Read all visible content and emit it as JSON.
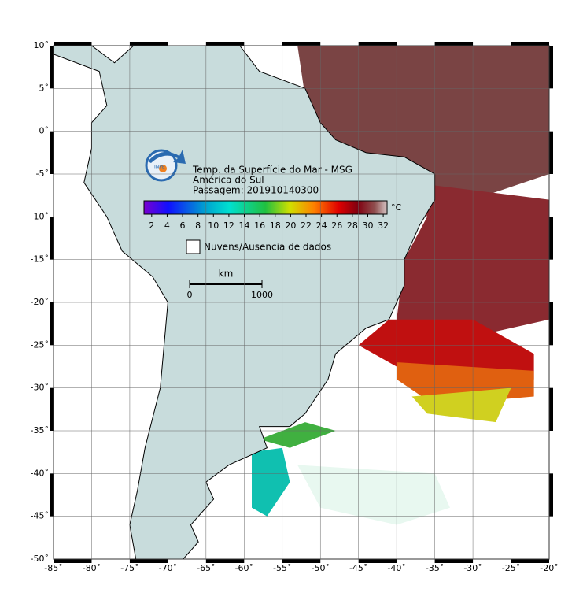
{
  "map": {
    "title": [
      "Temp. da Superfície do Mar - MSG",
      "América do Sul",
      "Passagem: 201910140300"
    ],
    "colorbar": {
      "unit": "°C",
      "lim": [
        1,
        32.5
      ],
      "ticks": [
        2,
        4,
        6,
        8,
        10,
        12,
        14,
        16,
        18,
        20,
        22,
        24,
        26,
        28,
        30,
        32
      ]
    },
    "legend": "Nuvens/Ausencia de dados",
    "scale": {
      "unit": "km",
      "ticks": [
        0,
        1000
      ]
    },
    "logo": "INPE",
    "xlim": [
      -85,
      -20
    ],
    "xticks": [
      {
        "value": -85,
        "label": "-85˚"
      },
      {
        "value": -80,
        "label": "-80˚"
      },
      {
        "value": -75,
        "label": "-75˚"
      },
      {
        "value": -70,
        "label": "-70˚"
      },
      {
        "value": -65,
        "label": "-65˚"
      },
      {
        "value": -60,
        "label": "-60˚"
      },
      {
        "value": -55,
        "label": "-55˚"
      },
      {
        "value": -50,
        "label": "-50˚"
      },
      {
        "value": -45,
        "label": "-45˚"
      },
      {
        "value": -40,
        "label": "-40˚"
      },
      {
        "value": -35,
        "label": "-35˚"
      },
      {
        "value": -30,
        "label": "-30˚"
      },
      {
        "value": -25,
        "label": "-25˚"
      },
      {
        "value": -20,
        "label": "-20˚"
      }
    ],
    "ylim": [
      -50,
      10
    ],
    "yticks": [
      {
        "value": 10,
        "label": "10˚"
      },
      {
        "value": 5,
        "label": "5˚"
      },
      {
        "value": 0,
        "label": "0˚"
      },
      {
        "value": -5,
        "label": "-5˚"
      },
      {
        "value": -10,
        "label": "-10˚"
      },
      {
        "value": -15,
        "label": "-15˚"
      },
      {
        "value": -20,
        "label": "-20˚"
      },
      {
        "value": -25,
        "label": "-25˚"
      },
      {
        "value": -30,
        "label": "-30˚"
      },
      {
        "value": -35,
        "label": "-35˚"
      },
      {
        "value": -40,
        "label": "-40˚"
      },
      {
        "value": -45,
        "label": "-45˚"
      },
      {
        "value": -50,
        "label": "-50˚"
      }
    ]
  }
}
